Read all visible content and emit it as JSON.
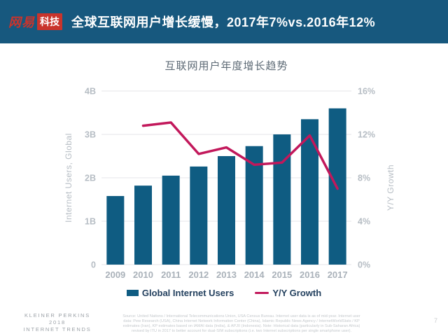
{
  "header": {
    "logo": {
      "prefix": "网易",
      "suffix": "科技"
    },
    "title": "全球互联网用户增长缓慢，2017年7%vs.2016年12%"
  },
  "chart_data": {
    "type": "bar",
    "title": "互联网用户年度增长趋势",
    "categories": [
      "2009",
      "2010",
      "2011",
      "2012",
      "2013",
      "2014",
      "2015",
      "2016",
      "2017"
    ],
    "series": [
      {
        "name": "Global Internet Users",
        "type": "bar",
        "axis": "left",
        "unit": "B",
        "values": [
          1.58,
          1.82,
          2.05,
          2.26,
          2.5,
          2.73,
          3.0,
          3.35,
          3.6
        ]
      },
      {
        "name": "Y/Y Growth",
        "type": "line",
        "axis": "right",
        "unit": "%",
        "values": [
          null,
          12.8,
          13.1,
          10.2,
          10.8,
          9.2,
          9.4,
          11.9,
          7.0
        ]
      }
    ],
    "left_axis": {
      "label": "Internet Users, Global",
      "min": 0,
      "max": 4,
      "tick_values": [
        0,
        1,
        2,
        3,
        4
      ],
      "tick_labels": [
        "0",
        "1B",
        "2B",
        "3B",
        "4B"
      ]
    },
    "right_axis": {
      "label": "Y/Y Growth",
      "min": 0,
      "max": 16,
      "tick_values": [
        0,
        4,
        8,
        12,
        16
      ],
      "tick_labels": [
        "0%",
        "4%",
        "8%",
        "12%",
        "16%"
      ]
    },
    "grid": true,
    "legend_position": "bottom"
  },
  "footer": {
    "brand_lines": [
      "KLEINER PERKINS",
      "2018",
      "INTERNET TRENDS"
    ],
    "source_lines": [
      "Source: United Nations / International Telecommunications Union, USA Census Bureau. Internet user data is as of mid-year. Internet user",
      "data: Pew Research (USA), China Internet Network Information Center (China), Islamic Republic News Agency / InternetWorldStats / KP",
      "estimates (Iran), KP estimates based on IAMAI data (India), & APJII (Indonesia). Note: Historical data (particularly in Sub-Saharan Africa)",
      "revised by ITU in 2017 to better account for dual-SIM subscriptions (i.e. two Internet subscriptions per single smartphone user)."
    ],
    "page_number": "7"
  },
  "colors": {
    "header_bg": "#17587e",
    "logo_red": "#c9342c",
    "bar": "#0f5c82",
    "line": "#c2185b",
    "grid": "#e9ebed",
    "tick": "#b6bdc4",
    "year": "#a9b1b9",
    "chart_title": "#5d6a75",
    "legend_text": "#24415f",
    "footnote": "#c4c8cc",
    "brand": "#9aa0a6",
    "page_number": "#caccce"
  }
}
